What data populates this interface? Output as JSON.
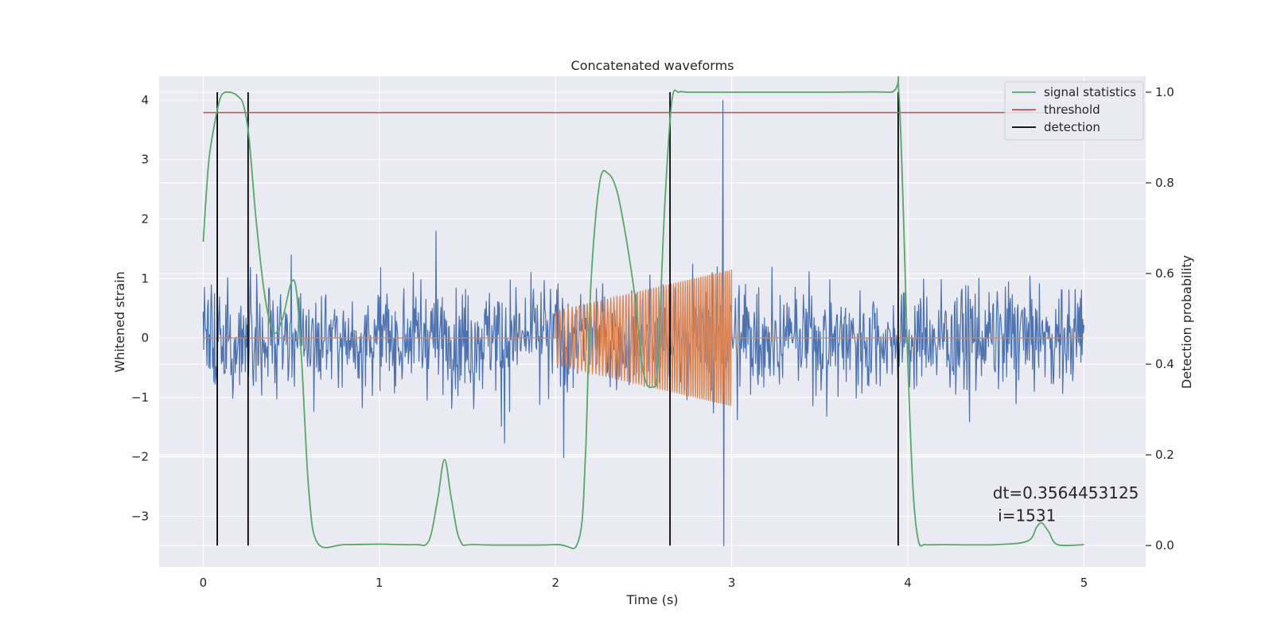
{
  "chart_data": {
    "type": "line",
    "title": "Concatenated waveforms",
    "xlabel": "Time (s)",
    "ylabel": "Whitened strain",
    "y2label": "Detection probability",
    "xlim": [
      -0.25,
      5.35
    ],
    "ylim": [
      -3.85,
      4.4
    ],
    "y2lim": [
      -0.047,
      1.035
    ],
    "x_ticks": [
      0,
      1,
      2,
      3,
      4,
      5
    ],
    "x_tick_labels": [
      "0",
      "1",
      "2",
      "3",
      "4",
      "5"
    ],
    "y_ticks": [
      -3,
      -2,
      -1,
      0,
      1,
      2,
      3,
      4
    ],
    "y_tick_labels": [
      "−3",
      "−2",
      "−1",
      "0",
      "1",
      "2",
      "3",
      "4"
    ],
    "y2_ticks": [
      0.0,
      0.2,
      0.4,
      0.6,
      0.8,
      1.0
    ],
    "y2_tick_labels": [
      "0.0",
      "0.2",
      "0.4",
      "0.6",
      "0.8",
      "1.0"
    ],
    "grid": true,
    "legend_position": "top-right",
    "noise_strain": {
      "name": "",
      "color": "#4c72b0",
      "x_range": [
        0,
        5
      ],
      "typical_envelope": [
        -2.4,
        2.6
      ],
      "max": 4.0,
      "min": -3.5
    },
    "template_waveform": {
      "name": "",
      "color": "#dd8452",
      "x_range": [
        0,
        5
      ],
      "chirp_start": 2.0,
      "chirp_end": 3.0,
      "start_amplitude": 0.45,
      "end_amplitude": 1.15,
      "start_frequency": 40,
      "end_frequency": 90
    },
    "series": [
      {
        "name": "signal statistics",
        "color": "#55a868",
        "axis": "right",
        "x": [
          0,
          0.03,
          0.06,
          0.1,
          0.15,
          0.2,
          0.23,
          0.26,
          0.3,
          0.35,
          0.4,
          0.45,
          0.5,
          0.53,
          0.56,
          0.6,
          0.65,
          0.8,
          1.0,
          1.2,
          1.28,
          1.33,
          1.37,
          1.41,
          1.46,
          1.55,
          2.0,
          2.13,
          2.17,
          2.2,
          2.25,
          2.3,
          2.35,
          2.4,
          2.45,
          2.5,
          2.55,
          2.58,
          2.62,
          2.66,
          2.7,
          2.75,
          2.9,
          3.5,
          3.9,
          3.95,
          4.0,
          4.03,
          4.06,
          4.1,
          4.2,
          4.5,
          4.68,
          4.73,
          4.76,
          4.8,
          4.85,
          5.0
        ],
        "values": [
          0.67,
          0.84,
          0.92,
          0.99,
          1.0,
          0.99,
          0.97,
          0.9,
          0.72,
          0.55,
          0.47,
          0.5,
          0.58,
          0.56,
          0.4,
          0.12,
          0.005,
          0.002,
          0.003,
          0.002,
          0.01,
          0.1,
          0.19,
          0.1,
          0.01,
          0.002,
          0.002,
          0.01,
          0.2,
          0.57,
          0.8,
          0.82,
          0.78,
          0.68,
          0.55,
          0.38,
          0.35,
          0.4,
          0.75,
          0.98,
          1.0,
          1.0,
          1.0,
          1.0,
          1.0,
          0.99,
          0.4,
          0.12,
          0.01,
          0.002,
          0.002,
          0.002,
          0.01,
          0.04,
          0.05,
          0.03,
          0.002,
          0.002
        ]
      },
      {
        "name": "threshold",
        "color": "#c44e52",
        "axis": "right",
        "x": [
          0,
          5
        ],
        "values": [
          0.955,
          0.955
        ]
      },
      {
        "name": "detection",
        "color": "#000000",
        "axis": "right",
        "type": "vlines",
        "x": [
          0.08,
          0.255,
          2.65,
          3.945
        ],
        "y_range": [
          0,
          1.0
        ]
      }
    ],
    "annotations": [
      {
        "text": "dt=0.3564453125",
        "x": 4.5,
        "y": -2.7
      },
      {
        "text": " i=1531",
        "x": 4.5,
        "y": -3.08
      }
    ]
  }
}
